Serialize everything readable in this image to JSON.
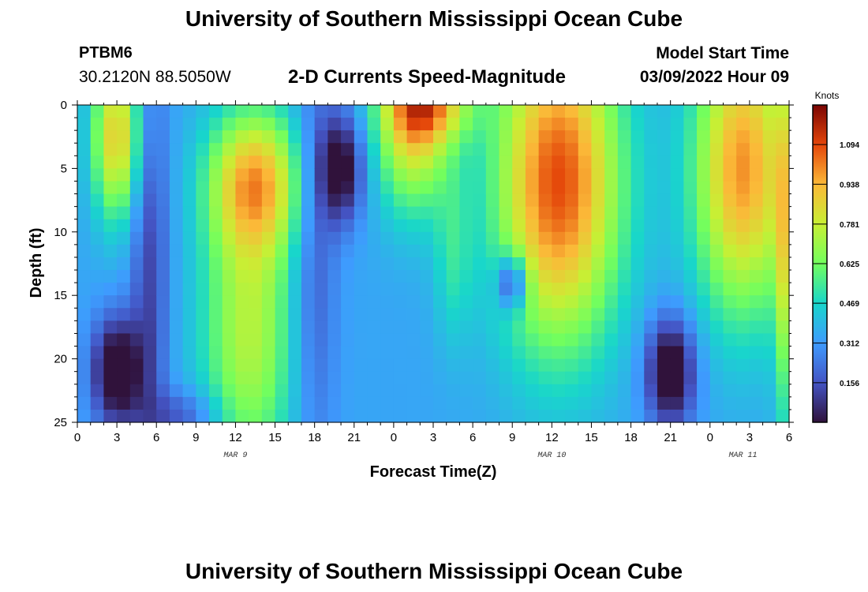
{
  "header": {
    "title": "University of Southern Mississippi Ocean Cube",
    "station": "PTBM6",
    "coords": "30.2120N  88.5050W",
    "subtitle": "2-D Currents Speed-Magnitude",
    "start_label": "Model Start Time",
    "start_value": "03/09/2022 Hour 09"
  },
  "footer": {
    "title": "University of Southern Mississippi Ocean Cube"
  },
  "chart_data": {
    "type": "heatmap",
    "title": "2-D Currents Speed-Magnitude",
    "xlabel": "Forecast Time(Z)",
    "ylabel": "Depth (ft)",
    "x_tick_labels": [
      "0",
      "3",
      "6",
      "9",
      "12",
      "15",
      "18",
      "21",
      "0",
      "3",
      "6",
      "9",
      "12",
      "15",
      "18",
      "21",
      "0",
      "3",
      "6"
    ],
    "x_range_hours": [
      0,
      54
    ],
    "y_ticks": [
      0,
      5,
      10,
      15,
      20,
      25
    ],
    "y_range": [
      0,
      25
    ],
    "date_labels": [
      {
        "text": "MAR 9",
        "hour": 12
      },
      {
        "text": "MAR 10",
        "hour": 36
      },
      {
        "text": "MAR 11",
        "hour": 50.5
      }
    ],
    "colorbar": {
      "label": "Knots",
      "min": 0,
      "max": 1.25,
      "ticks": [
        0.156,
        0.312,
        0.469,
        0.625,
        0.781,
        0.938,
        1.094
      ]
    },
    "grid": {
      "x_cells": 54,
      "y_cells": 25
    },
    "blobs": [
      {
        "t": 3,
        "d": 2.5,
        "st": 1.3,
        "sd": 4.5,
        "a": 0.55
      },
      {
        "t": 3,
        "d": 21,
        "st": 1.3,
        "sd": 3,
        "a": -0.45
      },
      {
        "t": 13.5,
        "d": 6,
        "st": 2.5,
        "sd": 4,
        "a": 0.55
      },
      {
        "t": 13,
        "d": 18,
        "st": 2.5,
        "sd": 8,
        "a": 0.4
      },
      {
        "t": 20,
        "d": 5,
        "st": 1.2,
        "sd": 3,
        "a": -0.4
      },
      {
        "t": 25.5,
        "d": 1,
        "st": 2,
        "sd": 5,
        "a": 0.55
      },
      {
        "t": 27,
        "d": 0,
        "st": 2.3,
        "sd": 2,
        "a": 0.35
      },
      {
        "t": 33,
        "d": 14,
        "st": 0.8,
        "sd": 1.5,
        "a": -0.4
      },
      {
        "t": 36.5,
        "d": 6,
        "st": 3.3,
        "sd": 9,
        "a": 0.75
      },
      {
        "t": 45,
        "d": 21,
        "st": 1.3,
        "sd": 3,
        "a": -0.45
      },
      {
        "t": 50.5,
        "d": 5,
        "st": 2.6,
        "sd": 8,
        "a": 0.65
      },
      {
        "t": 53.5,
        "d": 12,
        "st": 0.5,
        "sd": 10,
        "a": 0.3
      },
      {
        "t": 5.5,
        "d": 12,
        "st": 1.0,
        "sd": 12,
        "a": -0.22
      },
      {
        "t": 18,
        "d": 12,
        "st": 1.2,
        "sd": 12,
        "a": -0.18
      },
      {
        "t": 8,
        "d": 24.5,
        "st": 2,
        "sd": 1.5,
        "a": -0.18
      },
      {
        "t": 28.5,
        "d": 12,
        "st": 1,
        "sd": 5,
        "a": 0.15
      }
    ]
  }
}
